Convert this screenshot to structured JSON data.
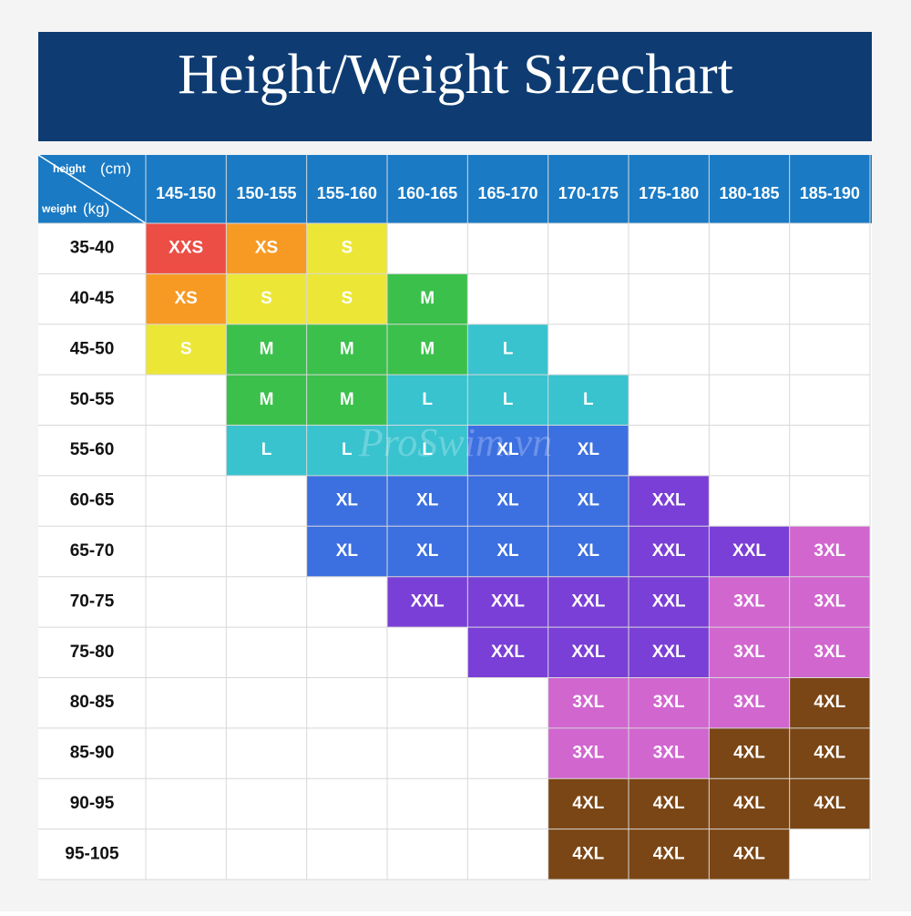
{
  "header": {
    "title": "Height/Weight Sizechart"
  },
  "corner": {
    "height_word": "height",
    "height_unit": "(cm)",
    "weight_word": "weight",
    "weight_unit": "(kg)"
  },
  "watermark": "ProSwim.vn",
  "table": {
    "columns": [
      "145-150",
      "150-155",
      "155-160",
      "160-165",
      "165-170",
      "170-175",
      "175-180",
      "180-185",
      "185-190"
    ],
    "rows": [
      {
        "label": "35-40",
        "cells": [
          "XXS",
          "XS",
          "S",
          null,
          null,
          null,
          null,
          null,
          null
        ]
      },
      {
        "label": "40-45",
        "cells": [
          "XS",
          "S",
          "S",
          "M",
          null,
          null,
          null,
          null,
          null
        ]
      },
      {
        "label": "45-50",
        "cells": [
          "S",
          "M",
          "M",
          "M",
          "L",
          null,
          null,
          null,
          null
        ]
      },
      {
        "label": "50-55",
        "cells": [
          null,
          "M",
          "M",
          "L",
          "L",
          "L",
          null,
          null,
          null
        ]
      },
      {
        "label": "55-60",
        "cells": [
          null,
          "L",
          "L",
          "L",
          "XL",
          "XL",
          null,
          null,
          null
        ]
      },
      {
        "label": "60-65",
        "cells": [
          null,
          null,
          "XL",
          "XL",
          "XL",
          "XL",
          "XXL",
          null,
          null
        ]
      },
      {
        "label": "65-70",
        "cells": [
          null,
          null,
          "XL",
          "XL",
          "XL",
          "XL",
          "XXL",
          "XXL",
          "3XL"
        ]
      },
      {
        "label": "70-75",
        "cells": [
          null,
          null,
          null,
          "XXL",
          "XXL",
          "XXL",
          "XXL",
          "3XL",
          "3XL"
        ]
      },
      {
        "label": "75-80",
        "cells": [
          null,
          null,
          null,
          null,
          "XXL",
          "XXL",
          "XXL",
          "3XL",
          "3XL"
        ]
      },
      {
        "label": "80-85",
        "cells": [
          null,
          null,
          null,
          null,
          null,
          "3XL",
          "3XL",
          "3XL",
          "4XL"
        ]
      },
      {
        "label": "85-90",
        "cells": [
          null,
          null,
          null,
          null,
          null,
          "3XL",
          "3XL",
          "4XL",
          "4XL"
        ]
      },
      {
        "label": "90-95",
        "cells": [
          null,
          null,
          null,
          null,
          null,
          "4XL",
          "4XL",
          "4XL",
          "4XL"
        ]
      },
      {
        "label": "95-105",
        "cells": [
          null,
          null,
          null,
          null,
          null,
          "4XL",
          "4XL",
          "4XL",
          null
        ]
      }
    ],
    "size_colors": {
      "XXS": "#ec4d45",
      "XS": "#f79a24",
      "S": "#ece637",
      "M": "#3cc04c",
      "L": "#38c3cf",
      "XL": "#3c6fe0",
      "XXL": "#7a3fd6",
      "3XL": "#d166cf",
      "4XL": "#7a4615"
    }
  }
}
